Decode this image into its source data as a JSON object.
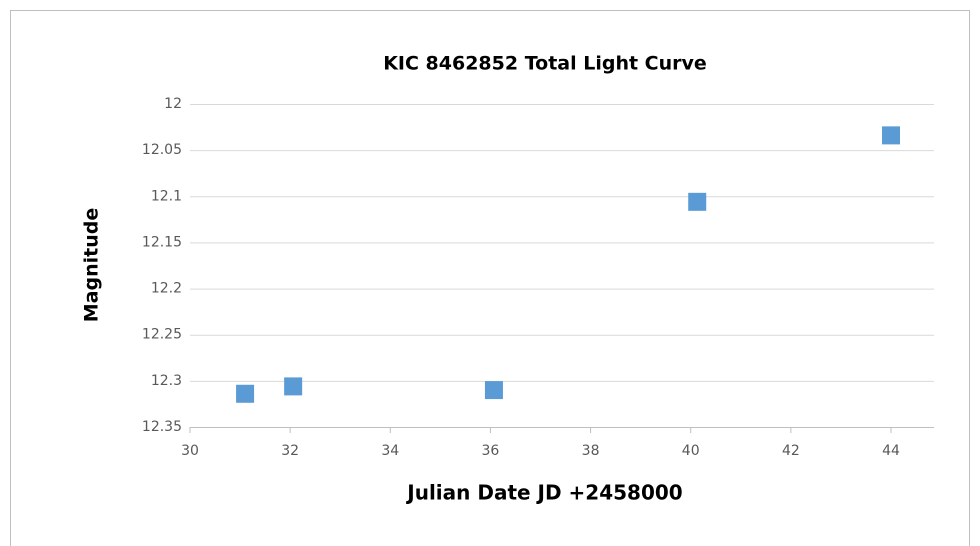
{
  "chart_data": {
    "type": "scatter",
    "title": "KIC 8462852 Total Light Curve",
    "xlabel": "Julian Date JD +2458000",
    "ylabel": "Magnitude",
    "series": [
      {
        "name": "Magnitude",
        "color": "#5b9bd5",
        "x": [
          31.1,
          32.06,
          36.07,
          40.13,
          44.0
        ],
        "values": [
          12.314,
          12.306,
          12.31,
          12.106,
          12.034
        ]
      }
    ],
    "xlim": [
      30,
      44
    ],
    "xticks": [
      30,
      32,
      34,
      36,
      38,
      40,
      42,
      44
    ],
    "ylim": [
      12,
      12.35
    ],
    "yticks": [
      12,
      12.05,
      12.1,
      12.15,
      12.2,
      12.25,
      12.3,
      12.35
    ],
    "y_inverted": true,
    "grid": true
  }
}
